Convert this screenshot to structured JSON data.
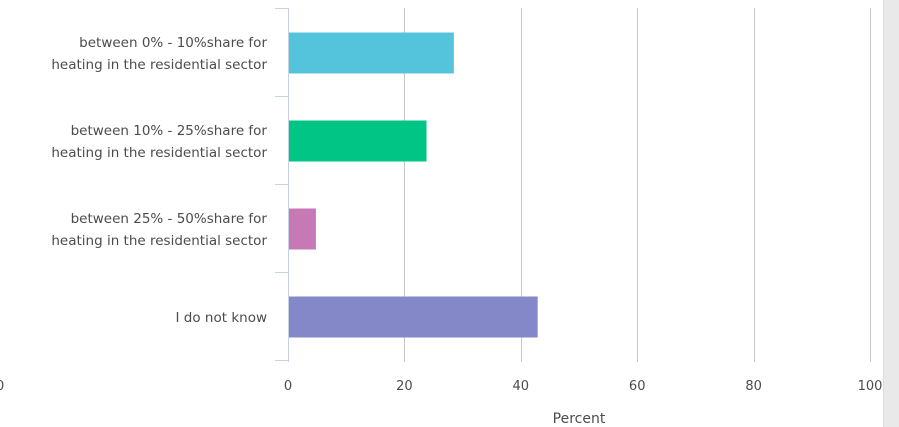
{
  "chart_data": {
    "type": "bar",
    "orientation": "horizontal",
    "categories": [
      [
        "between 0% - 10%share for",
        "heating in the residential sector"
      ],
      [
        "between 10% - 25%share for",
        "heating in the residential sector"
      ],
      [
        "between 25% - 50%share for",
        "heating in the residential sector"
      ],
      [
        "I do not know"
      ]
    ],
    "values": [
      28.5,
      23.8,
      4.8,
      42.9
    ],
    "colors": [
      "#54c4dc",
      "#00c584",
      "#c779b6",
      "#8588c8"
    ],
    "xlabel": "Percent",
    "xlim": [
      0,
      100
    ],
    "xticks": [
      "0",
      "20",
      "40",
      "60",
      "80",
      "100"
    ],
    "clipped_tick_label": "0",
    "grid": "vertical",
    "grid_color": "#c8c8c8",
    "axis_color": "#c5d2e2",
    "text_color": "#4c4c4c"
  },
  "scrollbar": {
    "color": "#e9e9e9"
  }
}
